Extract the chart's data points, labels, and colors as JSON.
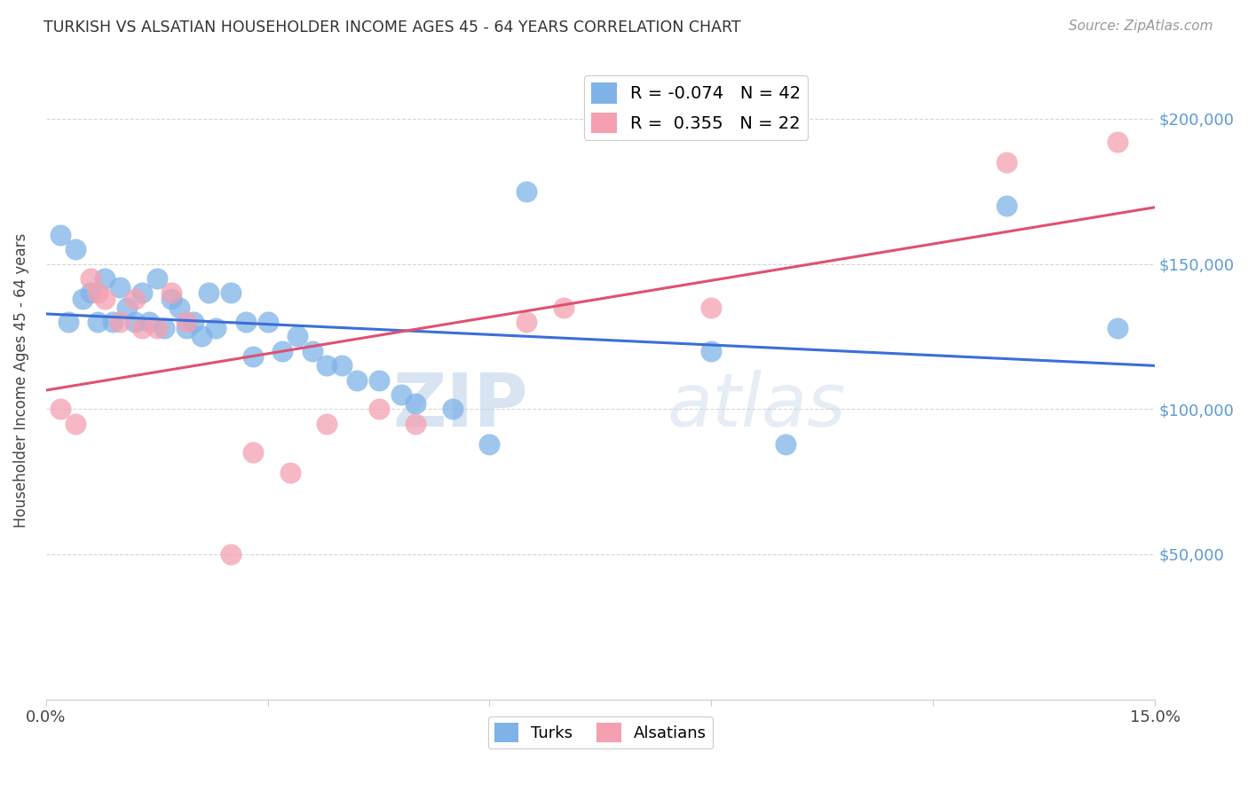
{
  "title": "TURKISH VS ALSATIAN HOUSEHOLDER INCOME AGES 45 - 64 YEARS CORRELATION CHART",
  "source": "Source: ZipAtlas.com",
  "ylabel": "Householder Income Ages 45 - 64 years",
  "x_min": 0.0,
  "x_max": 0.15,
  "y_min": 0,
  "y_max": 220000,
  "x_ticks": [
    0.0,
    0.03,
    0.06,
    0.09,
    0.12,
    0.15
  ],
  "x_tick_labels": [
    "0.0%",
    "",
    "",
    "",
    "",
    "15.0%"
  ],
  "y_ticks": [
    0,
    50000,
    100000,
    150000,
    200000
  ],
  "y_tick_labels": [
    "",
    "$50,000",
    "$100,000",
    "$150,000",
    "$200,000"
  ],
  "turks_R": "-0.074",
  "turks_N": "42",
  "alsatians_R": "0.355",
  "alsatians_N": "22",
  "turks_color": "#7fb3e8",
  "alsatians_color": "#f4a0b0",
  "trend_turks_color": "#3a6fd8",
  "trend_alsatians_color": "#e05070",
  "watermark_zip": "ZIP",
  "watermark_atlas": "atlas",
  "turks_x": [
    0.002,
    0.003,
    0.004,
    0.005,
    0.006,
    0.007,
    0.008,
    0.009,
    0.01,
    0.011,
    0.012,
    0.013,
    0.014,
    0.015,
    0.016,
    0.017,
    0.018,
    0.019,
    0.02,
    0.021,
    0.022,
    0.023,
    0.025,
    0.027,
    0.028,
    0.03,
    0.032,
    0.034,
    0.036,
    0.038,
    0.04,
    0.042,
    0.045,
    0.048,
    0.05,
    0.055,
    0.06,
    0.065,
    0.09,
    0.1,
    0.13,
    0.145
  ],
  "turks_y": [
    160000,
    130000,
    155000,
    138000,
    140000,
    130000,
    145000,
    130000,
    142000,
    135000,
    130000,
    140000,
    130000,
    145000,
    128000,
    138000,
    135000,
    128000,
    130000,
    125000,
    140000,
    128000,
    140000,
    130000,
    118000,
    130000,
    120000,
    125000,
    120000,
    115000,
    115000,
    110000,
    110000,
    105000,
    102000,
    100000,
    88000,
    175000,
    120000,
    88000,
    170000,
    128000
  ],
  "alsatians_x": [
    0.002,
    0.004,
    0.006,
    0.007,
    0.008,
    0.01,
    0.012,
    0.013,
    0.015,
    0.017,
    0.019,
    0.025,
    0.028,
    0.033,
    0.038,
    0.045,
    0.05,
    0.065,
    0.07,
    0.09,
    0.13,
    0.145
  ],
  "alsatians_y": [
    100000,
    95000,
    145000,
    140000,
    138000,
    130000,
    138000,
    128000,
    128000,
    140000,
    130000,
    50000,
    85000,
    78000,
    95000,
    100000,
    95000,
    130000,
    135000,
    135000,
    185000,
    192000
  ]
}
